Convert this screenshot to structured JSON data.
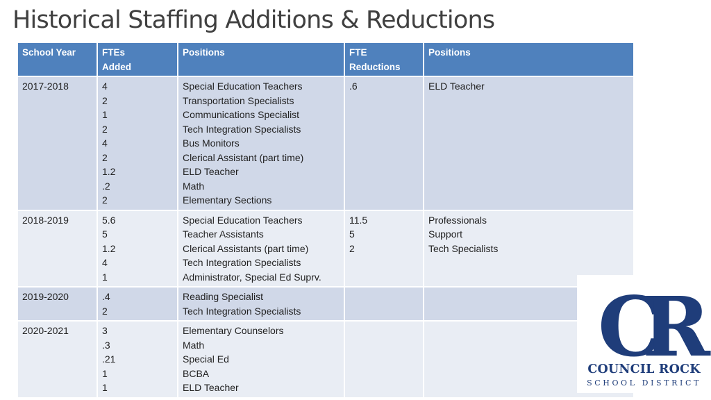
{
  "title": "Historical Staffing Additions & Reductions",
  "table": {
    "headers": [
      {
        "lines": [
          "School Year"
        ]
      },
      {
        "lines": [
          "FTEs",
          "Added"
        ]
      },
      {
        "lines": [
          "Positions"
        ]
      },
      {
        "lines": [
          "FTE",
          "Reductions"
        ]
      },
      {
        "lines": [
          "Positions"
        ]
      }
    ],
    "rows": [
      {
        "year": "2017-2018",
        "ftes_added": [
          "4",
          "2",
          "1",
          "2",
          "4",
          "2",
          "1.2",
          ".2",
          "2"
        ],
        "positions_added": [
          "Special Education Teachers",
          "Transportation Specialists",
          "Communications Specialist",
          "Tech Integration Specialists",
          "Bus Monitors",
          "Clerical Assistant (part time)",
          "ELD Teacher",
          "Math",
          "Elementary Sections"
        ],
        "fte_reductions": [
          ".6"
        ],
        "positions_reduced": [
          "ELD Teacher"
        ]
      },
      {
        "year": "2018-2019",
        "ftes_added": [
          "5.6",
          "5",
          "1.2",
          "4",
          "1"
        ],
        "positions_added": [
          "Special Education Teachers",
          "Teacher Assistants",
          "Clerical Assistants (part time)",
          "Tech Integration Specialists",
          "Administrator, Special Ed Suprv."
        ],
        "fte_reductions": [
          "11.5",
          "5",
          "2"
        ],
        "positions_reduced": [
          "Professionals",
          "Support",
          "Tech Specialists"
        ]
      },
      {
        "year": "2019-2020",
        "ftes_added": [
          ".4",
          "2"
        ],
        "positions_added": [
          "Reading Specialist",
          "Tech Integration Specialists"
        ],
        "fte_reductions": [],
        "positions_reduced": []
      },
      {
        "year": "2020-2021",
        "ftes_added": [
          "3",
          ".3",
          ".21",
          "1",
          "1"
        ],
        "positions_added": [
          "Elementary Counselors",
          "Math",
          "Special Ed",
          "BCBA",
          "ELD Teacher"
        ],
        "fte_reductions": [],
        "positions_reduced": []
      }
    ]
  },
  "logo": {
    "letters": "CR",
    "name": "COUNCIL ROCK",
    "subtitle": "SCHOOL DISTRICT"
  },
  "colors": {
    "header_bg": "#4f81bd",
    "row_odd": "#d0d8e8",
    "row_even": "#e9edf4",
    "logo_blue": "#1f3d7a"
  }
}
